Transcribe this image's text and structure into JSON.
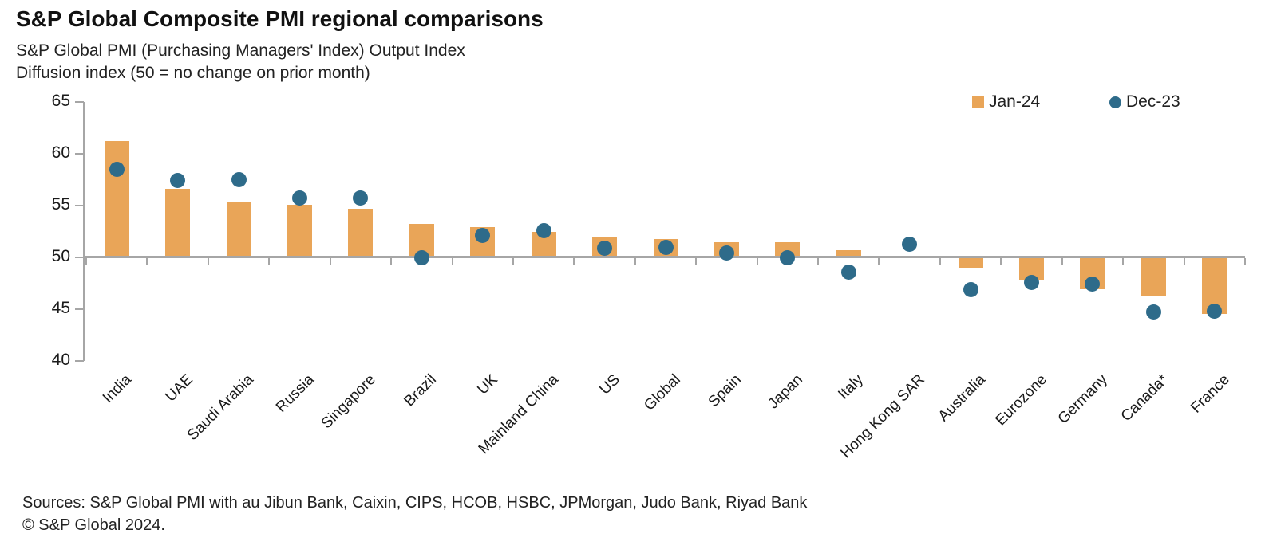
{
  "header": {
    "title": "S&P Global Composite PMI regional comparisons",
    "subtitle1": "S&P Global PMI (Purchasing Managers' Index) Output Index",
    "subtitle2": "Diffusion index  (50 = no change on prior month)"
  },
  "legend": {
    "jan": {
      "label": "Jan-24"
    },
    "dec": {
      "label": "Dec-23"
    }
  },
  "footer": {
    "sources": "Sources: S&P Global PMI with au Jibun Bank, Caixin, CIPS, HCOB, HSBC, JPMorgan, Judo Bank, Riyad Bank",
    "copyright": "© S&P Global 2024."
  },
  "colors": {
    "bar": "#E9A558",
    "dot": "#2E6B8A",
    "axis": "#A6A6A6"
  },
  "chart_data": {
    "type": "bar",
    "title": "S&P Global Composite PMI regional comparisons",
    "subtitle": [
      "S&P Global PMI (Purchasing Managers' Index) Output Index",
      "Diffusion index (50 = no change on prior month)"
    ],
    "categories": [
      "India",
      "UAE",
      "Saudi Arabia",
      "Russia",
      "Singapore",
      "Brazil",
      "UK",
      "Mainland China",
      "US",
      "Global",
      "Spain",
      "Japan",
      "Italy",
      "Hong Kong SAR",
      "Australia",
      "Eurozone",
      "Germany",
      "Canada*",
      "France"
    ],
    "series": [
      {
        "name": "Jan-24",
        "mark": "bar",
        "color": "#E9A558",
        "values": [
          61.2,
          56.6,
          55.4,
          55.1,
          54.7,
          53.2,
          52.9,
          52.5,
          52.0,
          51.8,
          51.5,
          51.5,
          50.7,
          null,
          49.1,
          47.9,
          47.0,
          46.3,
          44.6
        ]
      },
      {
        "name": "Dec-23",
        "mark": "scatter",
        "color": "#2E6B8A",
        "values": [
          58.5,
          57.4,
          57.5,
          55.7,
          55.7,
          50.0,
          52.1,
          52.6,
          50.9,
          51.0,
          50.4,
          50.0,
          48.6,
          51.3,
          46.9,
          47.6,
          47.4,
          44.7,
          44.8
        ]
      }
    ],
    "baseline": 50,
    "ylabel": "Diffusion index",
    "ylim": [
      40,
      65
    ],
    "yticks": [
      65,
      60,
      55,
      50,
      45,
      40
    ],
    "grid": false,
    "legend_position": "top-right"
  }
}
